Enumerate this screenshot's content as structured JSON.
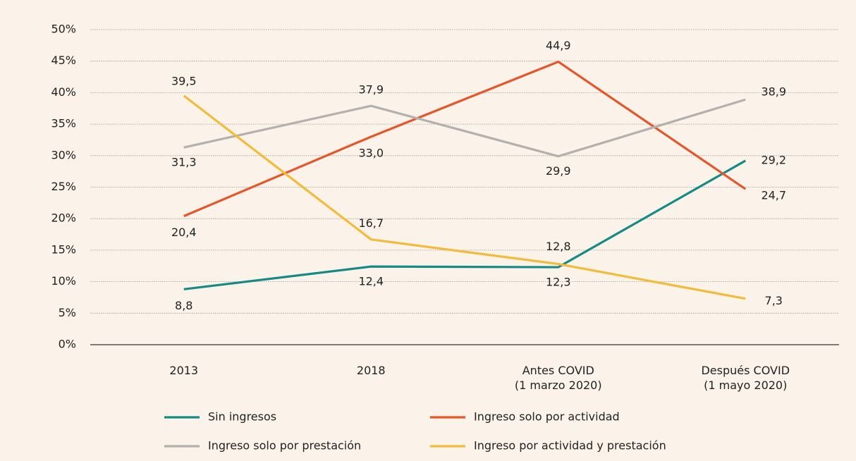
{
  "chart_data": {
    "type": "line",
    "categories": [
      "2013",
      "2018",
      "Antes COVID\n(1 marzo 2020)",
      "Después COVID\n(1 mayo 2020)"
    ],
    "series": [
      {
        "name": "Sin ingresos",
        "color": "#168a84",
        "values": [
          8.8,
          12.4,
          12.3,
          29.2
        ],
        "value_labels": [
          "8,8",
          "12,4",
          "12,3",
          "29,2"
        ]
      },
      {
        "name": "Ingreso solo por actividad",
        "color": "#e5562b",
        "values": [
          20.4,
          33.0,
          44.9,
          24.7
        ],
        "value_labels": [
          "20,4",
          "33,0",
          "44,9",
          "24,7"
        ]
      },
      {
        "name": "Ingreso solo por prestación",
        "color": "#b3b0ad",
        "values": [
          31.3,
          37.9,
          29.9,
          38.9
        ],
        "value_labels": [
          "31,3",
          "37,9",
          "29,9",
          "38,9"
        ]
      },
      {
        "name": "Ingreso por actividad y prestación",
        "color": "#f2bb3a",
        "values": [
          39.5,
          16.7,
          12.8,
          7.3
        ],
        "value_labels": [
          "39,5",
          "16,7",
          "12,8",
          "7,3"
        ]
      }
    ],
    "ylim": [
      0,
      50
    ],
    "yticks": [
      {
        "value": 0,
        "label": "0%"
      },
      {
        "value": 5,
        "label": "5%"
      },
      {
        "value": 10,
        "label": "10%"
      },
      {
        "value": 15,
        "label": "15%"
      },
      {
        "value": 20,
        "label": "20%"
      },
      {
        "value": 25,
        "label": "25%"
      },
      {
        "value": 30,
        "label": "30%"
      },
      {
        "value": 35,
        "label": "35%"
      },
      {
        "value": 40,
        "label": "40%"
      },
      {
        "value": 45,
        "label": "45%"
      },
      {
        "value": 50,
        "label": "50%"
      }
    ],
    "grid": true
  }
}
